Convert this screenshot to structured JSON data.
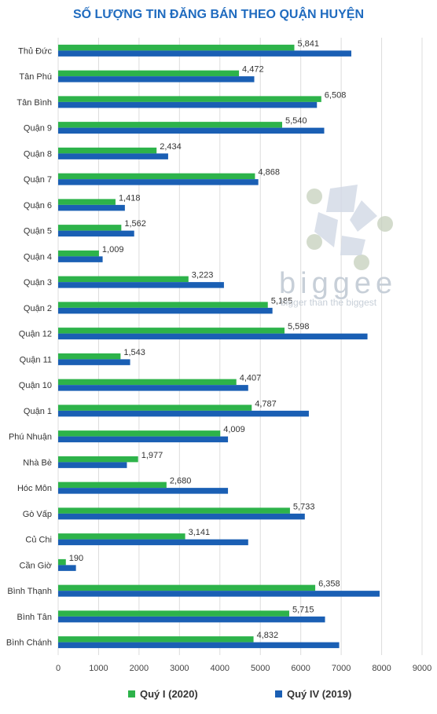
{
  "chart_data": {
    "type": "bar",
    "orientation": "horizontal",
    "title": "SỐ LƯỢNG TIN ĐĂNG BÁN THEO QUẬN HUYỆN",
    "categories": [
      "Thủ Đức",
      "Tân Phú",
      "Tân Bình",
      "Quận 9",
      "Quận 8",
      "Quận 7",
      "Quận 6",
      "Quận 5",
      "Quận 4",
      "Quận 3",
      "Quận 2",
      "Quận 12",
      "Quận 11",
      "Quận 10",
      "Quận 1",
      "Phú Nhuận",
      "Nhà Bè",
      "Hóc Môn",
      "Gò Vấp",
      "Củ Chi",
      "Cần Giờ",
      "Bình Thạnh",
      "Bình Tân",
      "Bình Chánh"
    ],
    "series": [
      {
        "name": "Quý I (2020)",
        "color": "#2db34a",
        "labels": [
          "5,841",
          "4,472",
          "6,508",
          "5,540",
          "2,434",
          "4,868",
          "1,418",
          "1,562",
          "1,009",
          "3,223",
          "5,185",
          "5,598",
          "1,543",
          "4,407",
          "4,787",
          "4,009",
          "1,977",
          "2,680",
          "5,733",
          "3,141",
          "190",
          "6,358",
          "5,715",
          "4,832"
        ],
        "values": [
          5841,
          4472,
          6508,
          5540,
          2434,
          4868,
          1418,
          1562,
          1009,
          3223,
          5185,
          5598,
          1543,
          4407,
          4787,
          4009,
          1977,
          2680,
          5733,
          3141,
          190,
          6358,
          5715,
          4832
        ]
      },
      {
        "name": "Quý IV (2019)",
        "color": "#1a5fb4",
        "values": [
          7250,
          4850,
          6400,
          6580,
          2720,
          4950,
          1650,
          1880,
          1100,
          4100,
          5300,
          7650,
          1780,
          4700,
          6200,
          4200,
          1700,
          4200,
          6100,
          4700,
          440,
          7950,
          6600,
          6950
        ]
      }
    ],
    "xlim": [
      0,
      9000
    ],
    "xticks": [
      "0",
      "1000",
      "2000",
      "3000",
      "4000",
      "5000",
      "6000",
      "7000",
      "8000",
      "9000"
    ],
    "grid": true,
    "legend": "bottom"
  },
  "watermark": {
    "brand": "biggee",
    "tagline": "bigger than the biggest"
  }
}
